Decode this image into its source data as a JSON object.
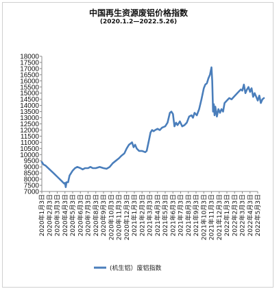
{
  "chart_data": {
    "type": "line",
    "title": "中国再生资源废铝价格指数",
    "subtitle": "(2020.1.2—2022.5.26)",
    "xlabel": "",
    "ylabel": "",
    "ylim": [
      7000,
      18000
    ],
    "yticks": [
      7000,
      7500,
      8000,
      8500,
      9000,
      9500,
      10000,
      10500,
      11000,
      11500,
      12000,
      12500,
      13000,
      13500,
      14000,
      14500,
      15000,
      15500,
      16000,
      16500,
      17000,
      17500,
      18000
    ],
    "xtick_labels": [
      "2020年1月3日",
      "2020年2月3日",
      "2020年3月3日",
      "2020年4月3日",
      "2020年5月3日",
      "2020年6月3日",
      "2020年7月3日",
      "2020年8月3日",
      "2020年9月3日",
      "2020年10月3日",
      "2020年11月3日",
      "2020年12月3日",
      "2021年1月3日",
      "2021年2月3日",
      "2021年3月3日",
      "2021年4月3日",
      "2021年5月3日",
      "2021年6月3日",
      "2021年7月3日",
      "2021年8月3日",
      "2021年9月3日",
      "2021年10月3日",
      "2021年11月3日",
      "2021年12月3日",
      "2022年1月3日",
      "2022年2月3日",
      "2022年3月3日",
      "2022年4月3日",
      "2022年5月3日"
    ],
    "grid": false,
    "legend_position": "bottom",
    "series": [
      {
        "name": "(机生铝）废铝指数",
        "color": "#4a7ebb",
        "points": [
          [
            0.0,
            9400
          ],
          [
            0.2,
            9200
          ],
          [
            0.5,
            9100
          ],
          [
            1.0,
            8800
          ],
          [
            1.5,
            8500
          ],
          [
            2.0,
            8200
          ],
          [
            2.5,
            7900
          ],
          [
            2.9,
            7650
          ],
          [
            3.0,
            7700
          ],
          [
            3.1,
            7350
          ],
          [
            3.2,
            7750
          ],
          [
            3.4,
            7750
          ],
          [
            3.6,
            8300
          ],
          [
            3.8,
            8500
          ],
          [
            4.0,
            8700
          ],
          [
            4.3,
            8900
          ],
          [
            4.6,
            9000
          ],
          [
            5.0,
            8900
          ],
          [
            5.3,
            8800
          ],
          [
            5.6,
            8900
          ],
          [
            6.0,
            8900
          ],
          [
            6.3,
            9000
          ],
          [
            6.6,
            8900
          ],
          [
            7.0,
            8900
          ],
          [
            7.5,
            9000
          ],
          [
            8.0,
            8900
          ],
          [
            8.4,
            8850
          ],
          [
            8.8,
            9000
          ],
          [
            9.2,
            9300
          ],
          [
            9.6,
            9500
          ],
          [
            10.0,
            9700
          ],
          [
            10.3,
            9900
          ],
          [
            10.7,
            10100
          ],
          [
            11.0,
            10500
          ],
          [
            11.3,
            10800
          ],
          [
            11.5,
            10900
          ],
          [
            11.7,
            11000
          ],
          [
            11.9,
            10600
          ],
          [
            12.1,
            10800
          ],
          [
            12.3,
            10500
          ],
          [
            12.6,
            10300
          ],
          [
            13.0,
            10300
          ],
          [
            13.4,
            10200
          ],
          [
            13.6,
            10300
          ],
          [
            13.9,
            11200
          ],
          [
            14.1,
            11800
          ],
          [
            14.3,
            12000
          ],
          [
            14.5,
            11900
          ],
          [
            14.7,
            12000
          ],
          [
            15.0,
            12100
          ],
          [
            15.3,
            12000
          ],
          [
            15.6,
            12200
          ],
          [
            16.0,
            12300
          ],
          [
            16.3,
            12600
          ],
          [
            16.6,
            13400
          ],
          [
            16.8,
            13500
          ],
          [
            17.0,
            13300
          ],
          [
            17.2,
            12300
          ],
          [
            17.4,
            12600
          ],
          [
            17.6,
            12400
          ],
          [
            17.9,
            12700
          ],
          [
            18.2,
            12300
          ],
          [
            18.5,
            12400
          ],
          [
            18.8,
            12600
          ],
          [
            19.1,
            13100
          ],
          [
            19.4,
            13200
          ],
          [
            19.6,
            13000
          ],
          [
            19.8,
            13400
          ],
          [
            20.1,
            13200
          ],
          [
            20.4,
            13700
          ],
          [
            20.7,
            14500
          ],
          [
            21.0,
            15400
          ],
          [
            21.2,
            15700
          ],
          [
            21.4,
            15800
          ],
          [
            21.6,
            16200
          ],
          [
            21.8,
            16500
          ],
          [
            22.0,
            17100
          ],
          [
            22.1,
            16000
          ],
          [
            22.2,
            13500
          ],
          [
            22.3,
            14100
          ],
          [
            22.4,
            13200
          ],
          [
            22.5,
            13900
          ],
          [
            22.7,
            13100
          ],
          [
            22.9,
            13700
          ],
          [
            23.1,
            13400
          ],
          [
            23.3,
            13700
          ],
          [
            23.5,
            13500
          ],
          [
            23.7,
            14200
          ],
          [
            24.0,
            14400
          ],
          [
            24.3,
            14600
          ],
          [
            24.6,
            14500
          ],
          [
            24.9,
            14700
          ],
          [
            25.2,
            14900
          ],
          [
            25.5,
            15100
          ],
          [
            25.8,
            15300
          ],
          [
            26.0,
            15200
          ],
          [
            26.2,
            15700
          ],
          [
            26.4,
            15000
          ],
          [
            26.6,
            15300
          ],
          [
            26.8,
            15500
          ],
          [
            27.0,
            15100
          ],
          [
            27.2,
            15400
          ],
          [
            27.4,
            14700
          ],
          [
            27.6,
            15000
          ],
          [
            27.8,
            14700
          ],
          [
            28.0,
            14400
          ],
          [
            28.2,
            14800
          ],
          [
            28.4,
            14200
          ],
          [
            28.6,
            14500
          ],
          [
            28.8,
            14600
          ]
        ]
      }
    ]
  }
}
